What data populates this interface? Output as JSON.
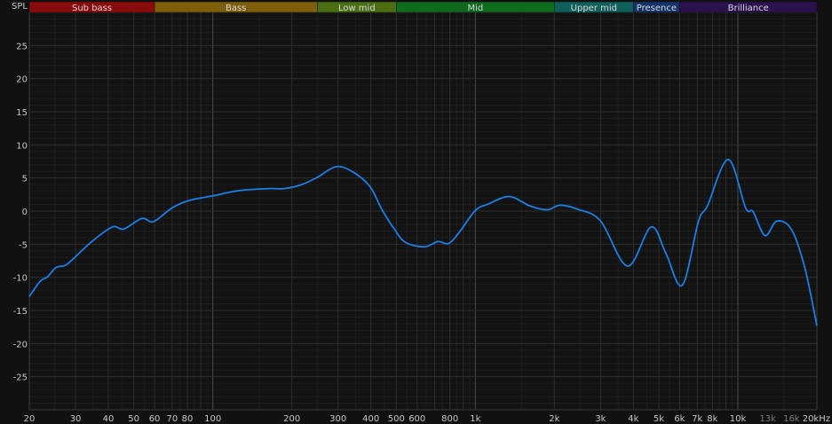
{
  "chart_data": {
    "type": "line",
    "ylabel": "SPL",
    "x_scale": "log",
    "xlim": [
      20,
      20000
    ],
    "ylim": [
      -30,
      30
    ],
    "grid": true,
    "x_ticks": [
      {
        "value": 20,
        "label": "20"
      },
      {
        "value": 30,
        "label": "30"
      },
      {
        "value": 40,
        "label": "40"
      },
      {
        "value": 50,
        "label": "50"
      },
      {
        "value": 60,
        "label": "60"
      },
      {
        "value": 70,
        "label": "70"
      },
      {
        "value": 80,
        "label": "80"
      },
      {
        "value": 100,
        "label": "100"
      },
      {
        "value": 200,
        "label": "200"
      },
      {
        "value": 300,
        "label": "300"
      },
      {
        "value": 400,
        "label": "400"
      },
      {
        "value": 500,
        "label": "500"
      },
      {
        "value": 600,
        "label": "600"
      },
      {
        "value": 800,
        "label": "800"
      },
      {
        "value": 1000,
        "label": "1k"
      },
      {
        "value": 2000,
        "label": "2k"
      },
      {
        "value": 3000,
        "label": "3k"
      },
      {
        "value": 4000,
        "label": "4k"
      },
      {
        "value": 5000,
        "label": "5k"
      },
      {
        "value": 6000,
        "label": "6k"
      },
      {
        "value": 7000,
        "label": "7k"
      },
      {
        "value": 8000,
        "label": "8k"
      },
      {
        "value": 10000,
        "label": "10k"
      },
      {
        "value": 13000,
        "label": "13k",
        "dim": true
      },
      {
        "value": 16000,
        "label": "16k",
        "dim": true
      },
      {
        "value": 20000,
        "label": "20kHz"
      }
    ],
    "y_ticks": [
      {
        "value": 25,
        "label": "25"
      },
      {
        "value": 20,
        "label": "20"
      },
      {
        "value": 15,
        "label": "15"
      },
      {
        "value": 10,
        "label": "10"
      },
      {
        "value": 5,
        "label": "5"
      },
      {
        "value": 0,
        "label": "0"
      },
      {
        "value": -5,
        "label": "-5"
      },
      {
        "value": -10,
        "label": "-10"
      },
      {
        "value": -15,
        "label": "-15"
      },
      {
        "value": -20,
        "label": "-20"
      },
      {
        "value": -25,
        "label": "-25"
      }
    ],
    "bands": [
      {
        "label": "Sub bass",
        "from": 20,
        "to": 60,
        "color": "#8a0b0b"
      },
      {
        "label": "Bass",
        "from": 60,
        "to": 250,
        "color": "#7e5e0b"
      },
      {
        "label": "Low mid",
        "from": 250,
        "to": 500,
        "color": "#4b6e12"
      },
      {
        "label": "Mid",
        "from": 500,
        "to": 2000,
        "color": "#0f6a1e"
      },
      {
        "label": "Upper mid",
        "from": 2000,
        "to": 4000,
        "color": "#0f5f5a"
      },
      {
        "label": "Presence",
        "from": 4000,
        "to": 6000,
        "color": "#14336a"
      },
      {
        "label": "Brilliance",
        "from": 6000,
        "to": 20000,
        "color": "#2b1150"
      }
    ],
    "series": [
      {
        "color": "#1a7fe6",
        "x": [
          20,
          22,
          23.5,
          25.3,
          27.4,
          29.6,
          34.6,
          41.4,
          45.8,
          53.7,
          59.4,
          70,
          81,
          100,
          126,
          164,
          187,
          218,
          250,
          294,
          339,
          397,
          440,
          489,
          541,
          640,
          720,
          789,
          865,
          1000,
          1125,
          1350,
          1610,
          1880,
          2100,
          2450,
          3000,
          3800,
          4670,
          5320,
          6140,
          7080,
          7660,
          9190,
          10700,
          11430,
          12680,
          14080,
          16020,
          18000,
          20000
        ],
        "y": [
          -12.9,
          -10.6,
          -9.9,
          -8.5,
          -8.2,
          -7.1,
          -4.6,
          -2.4,
          -2.7,
          -1.1,
          -1.6,
          0.5,
          1.6,
          2.3,
          3.1,
          3.4,
          3.4,
          4.0,
          5.1,
          6.7,
          6.0,
          3.7,
          0.3,
          -2.6,
          -4.7,
          -5.4,
          -4.6,
          -4.9,
          -3.3,
          0.1,
          1.1,
          2.2,
          0.8,
          0.2,
          0.9,
          0.3,
          -1.5,
          -8.3,
          -2.4,
          -6.4,
          -11.2,
          -1.5,
          0.8,
          7.8,
          0.5,
          -0.1,
          -3.7,
          -1.5,
          -2.8,
          -8.6,
          -17.3
        ]
      }
    ]
  },
  "colors": {
    "background": "#111111",
    "plot_background": "#131313",
    "grid_major": "#2e2e2e",
    "grid_minor": "#1d1d1d",
    "grid_decade": "#4a4a4a"
  }
}
